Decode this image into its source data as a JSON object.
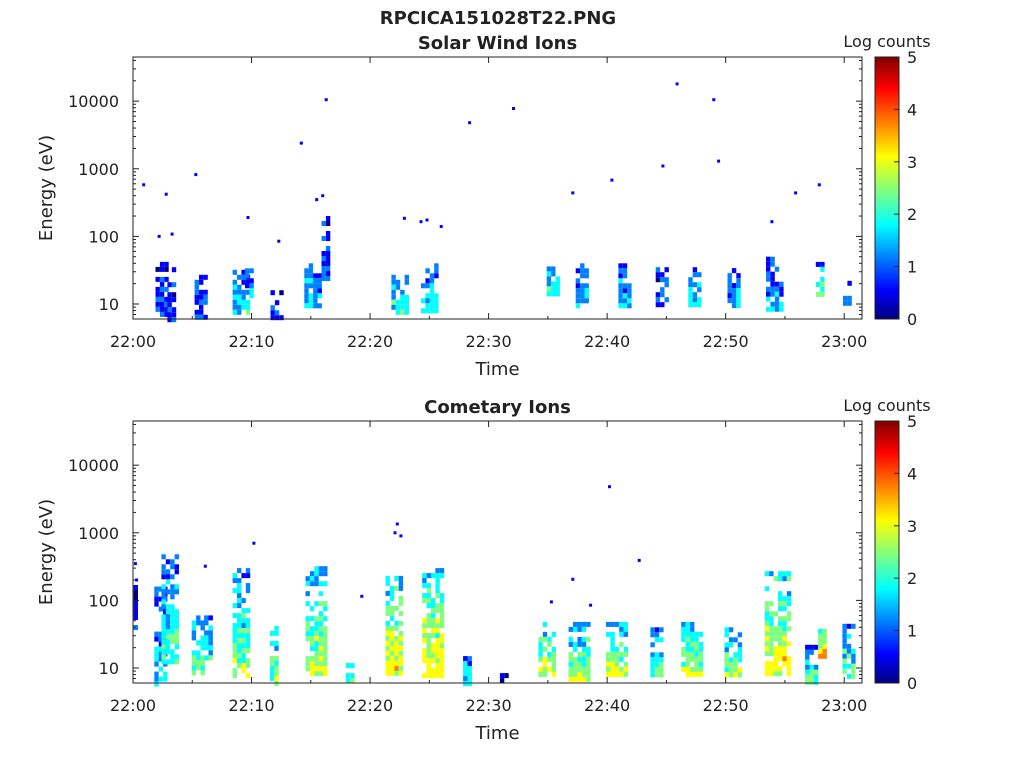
{
  "figure_title": "RPCICA151028T22.PNG",
  "colormap": [
    "#00007f",
    "#0000ff",
    "#007fff",
    "#00ffff",
    "#7fff7f",
    "#ffff00",
    "#ff7f00",
    "#ff0000",
    "#7f0000"
  ],
  "chart_data": [
    {
      "type": "heatmap",
      "title": "Solar Wind Ions",
      "xlabel": "Time",
      "ylabel": "Energy (eV)",
      "yscale": "log",
      "ylim": [
        6,
        45000
      ],
      "xlim": [
        "22:00",
        "23:01"
      ],
      "x_ticks": [
        "22:00",
        "22:10",
        "22:20",
        "22:30",
        "22:40",
        "22:50",
        "23:00"
      ],
      "y_ticks": [
        "10",
        "100",
        "1000",
        "10000"
      ],
      "colorbar": {
        "label": "Log counts",
        "range": [
          0,
          5
        ],
        "ticks": [
          "0",
          "1",
          "2",
          "3",
          "4",
          "5"
        ]
      },
      "bursts": [
        {
          "t": 2.3,
          "w": 0.8,
          "emin": 7,
          "emax": 42,
          "c": 0.8
        },
        {
          "t": 3.2,
          "w": 0.6,
          "emin": 6,
          "emax": 35,
          "c": 0.9
        },
        {
          "t": 5.6,
          "w": 0.8,
          "emin": 6,
          "emax": 27,
          "c": 1.2
        },
        {
          "t": 9.0,
          "w": 1.2,
          "emin": 8,
          "emax": 32,
          "c": 1.6
        },
        {
          "t": 9.7,
          "w": 0.5,
          "emin": 14,
          "emax": 40,
          "c": 1.4
        },
        {
          "t": 12.0,
          "w": 0.8,
          "emin": 6,
          "emax": 16,
          "c": 0.9
        },
        {
          "t": 15.1,
          "w": 1.3,
          "emin": 9,
          "emax": 40,
          "c": 1.5
        },
        {
          "t": 16.2,
          "w": 0.6,
          "emin": 22,
          "emax": 200,
          "c": 1.1
        },
        {
          "t": 22.4,
          "w": 1.2,
          "emin": 8,
          "emax": 27,
          "c": 1.9
        },
        {
          "t": 25.0,
          "w": 1.4,
          "emin": 8,
          "emax": 40,
          "c": 1.7
        },
        {
          "t": 35.3,
          "w": 0.8,
          "emin": 13,
          "emax": 36,
          "c": 2.2
        },
        {
          "t": 37.8,
          "w": 0.9,
          "emin": 9,
          "emax": 40,
          "c": 1.6
        },
        {
          "t": 41.5,
          "w": 1.1,
          "emin": 9,
          "emax": 40,
          "c": 1.5
        },
        {
          "t": 44.6,
          "w": 1.0,
          "emin": 9,
          "emax": 35,
          "c": 1.0
        },
        {
          "t": 47.3,
          "w": 0.9,
          "emin": 9,
          "emax": 35,
          "c": 1.7
        },
        {
          "t": 50.6,
          "w": 0.9,
          "emin": 9,
          "emax": 34,
          "c": 1.4
        },
        {
          "t": 54.0,
          "w": 1.2,
          "emin": 9,
          "emax": 50,
          "c": 1.4
        },
        {
          "t": 57.9,
          "w": 0.6,
          "emin": 13,
          "emax": 42,
          "c": 2.3
        },
        {
          "t": 60.2,
          "w": 0.6,
          "emin": 10,
          "emax": 22,
          "c": 1.0
        }
      ],
      "dots": [
        {
          "t": 0.9,
          "e": 580
        },
        {
          "t": 2.2,
          "e": 100
        },
        {
          "t": 2.8,
          "e": 420
        },
        {
          "t": 3.3,
          "e": 108
        },
        {
          "t": 5.3,
          "e": 820
        },
        {
          "t": 9.7,
          "e": 190
        },
        {
          "t": 12.3,
          "e": 85
        },
        {
          "t": 14.2,
          "e": 2400
        },
        {
          "t": 15.5,
          "e": 350
        },
        {
          "t": 16.3,
          "e": 10500
        },
        {
          "t": 16.0,
          "e": 400
        },
        {
          "t": 22.9,
          "e": 185
        },
        {
          "t": 24.3,
          "e": 165
        },
        {
          "t": 24.8,
          "e": 175
        },
        {
          "t": 26.0,
          "e": 140
        },
        {
          "t": 28.4,
          "e": 4800
        },
        {
          "t": 32.1,
          "e": 7800
        },
        {
          "t": 37.1,
          "e": 440
        },
        {
          "t": 40.4,
          "e": 680
        },
        {
          "t": 44.7,
          "e": 1100
        },
        {
          "t": 45.9,
          "e": 18000
        },
        {
          "t": 49.0,
          "e": 10500
        },
        {
          "t": 49.4,
          "e": 1300
        },
        {
          "t": 53.9,
          "e": 165
        },
        {
          "t": 55.9,
          "e": 440
        },
        {
          "t": 57.9,
          "e": 580
        }
      ]
    },
    {
      "type": "heatmap",
      "title": "Cometary Ions",
      "xlabel": "Time",
      "ylabel": "Energy (eV)",
      "yscale": "log",
      "ylim": [
        6,
        45000
      ],
      "xlim": [
        "22:00",
        "23:01"
      ],
      "x_ticks": [
        "22:00",
        "22:10",
        "22:20",
        "22:30",
        "22:40",
        "22:50",
        "23:00"
      ],
      "y_ticks": [
        "10",
        "100",
        "1000",
        "10000"
      ],
      "colorbar": {
        "label": "Log counts",
        "range": [
          0,
          5
        ],
        "ticks": [
          "0",
          "1",
          "2",
          "3",
          "4",
          "5"
        ]
      },
      "bursts": [
        {
          "t": 0.2,
          "w": 0.3,
          "emin": 40,
          "emax": 200,
          "c": 0.9
        },
        {
          "t": 2.2,
          "w": 0.8,
          "emin": 6,
          "emax": 160,
          "c": 1.4
        },
        {
          "t": 3.0,
          "w": 1.2,
          "emin": 12,
          "emax": 480,
          "c": 2.0
        },
        {
          "t": 5.4,
          "w": 0.9,
          "emin": 8,
          "emax": 60,
          "c": 2.3
        },
        {
          "t": 6.3,
          "w": 0.6,
          "emin": 14,
          "emax": 60,
          "c": 1.8
        },
        {
          "t": 9.1,
          "w": 1.4,
          "emin": 8,
          "emax": 300,
          "c": 2.4
        },
        {
          "t": 11.9,
          "w": 0.7,
          "emin": 6,
          "emax": 42,
          "c": 2.5
        },
        {
          "t": 15.3,
          "w": 1.5,
          "emin": 8,
          "emax": 320,
          "c": 2.6
        },
        {
          "t": 18.3,
          "w": 0.7,
          "emin": 6,
          "emax": 14,
          "c": 2.1
        },
        {
          "t": 22.0,
          "w": 1.4,
          "emin": 8,
          "emax": 230,
          "c": 2.9
        },
        {
          "t": 25.2,
          "w": 1.6,
          "emin": 8,
          "emax": 300,
          "c": 3.0
        },
        {
          "t": 28.2,
          "w": 0.7,
          "emin": 6,
          "emax": 15,
          "c": 1.9
        },
        {
          "t": 31.3,
          "w": 0.7,
          "emin": 6,
          "emax": 14,
          "c": 0.4
        },
        {
          "t": 34.9,
          "w": 1.4,
          "emin": 8,
          "emax": 48,
          "c": 2.8
        },
        {
          "t": 37.5,
          "w": 1.5,
          "emin": 7,
          "emax": 48,
          "c": 2.6
        },
        {
          "t": 40.8,
          "w": 1.8,
          "emin": 8,
          "emax": 48,
          "c": 2.8
        },
        {
          "t": 44.2,
          "w": 1.1,
          "emin": 8,
          "emax": 40,
          "c": 2.2
        },
        {
          "t": 47.0,
          "w": 1.5,
          "emin": 8,
          "emax": 48,
          "c": 2.6
        },
        {
          "t": 50.5,
          "w": 1.2,
          "emin": 8,
          "emax": 40,
          "c": 2.4
        },
        {
          "t": 54.3,
          "w": 2.0,
          "emin": 8,
          "emax": 270,
          "c": 3.0
        },
        {
          "t": 57.1,
          "w": 0.8,
          "emin": 6,
          "emax": 22,
          "c": 2.2
        },
        {
          "t": 58.1,
          "w": 0.6,
          "emin": 14,
          "emax": 45,
          "c": 3.6
        },
        {
          "t": 60.3,
          "w": 0.9,
          "emin": 8,
          "emax": 45,
          "c": 2.1
        }
      ],
      "dots": [
        {
          "t": 0.2,
          "e": 350
        },
        {
          "t": 0.3,
          "e": 200
        },
        {
          "t": 6.1,
          "e": 320
        },
        {
          "t": 10.2,
          "e": 700
        },
        {
          "t": 19.3,
          "e": 115
        },
        {
          "t": 22.3,
          "e": 1350
        },
        {
          "t": 22.1,
          "e": 1000
        },
        {
          "t": 22.6,
          "e": 900
        },
        {
          "t": 37.1,
          "e": 205
        },
        {
          "t": 40.2,
          "e": 4800
        },
        {
          "t": 42.7,
          "e": 390
        },
        {
          "t": 35.3,
          "e": 95
        },
        {
          "t": 38.6,
          "e": 85
        }
      ]
    }
  ]
}
